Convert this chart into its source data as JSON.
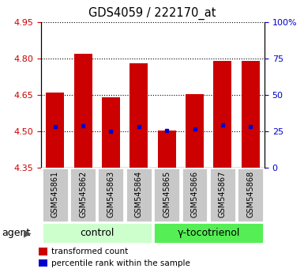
{
  "title": "GDS4059 / 222170_at",
  "samples": [
    "GSM545861",
    "GSM545862",
    "GSM545863",
    "GSM545864",
    "GSM545865",
    "GSM545866",
    "GSM545867",
    "GSM545868"
  ],
  "bar_tops": [
    4.66,
    4.82,
    4.64,
    4.78,
    4.505,
    4.655,
    4.79,
    4.79
  ],
  "bar_bottom": 4.35,
  "blue_values": [
    4.52,
    4.525,
    4.502,
    4.52,
    4.503,
    4.512,
    4.528,
    4.522
  ],
  "ylim_left": [
    4.35,
    4.95
  ],
  "ylim_right": [
    0,
    100
  ],
  "yticks_left": [
    4.35,
    4.5,
    4.65,
    4.8,
    4.95
  ],
  "yticks_right": [
    0,
    25,
    50,
    75,
    100
  ],
  "ytick_labels_right": [
    "0",
    "25",
    "50",
    "75",
    "100%"
  ],
  "bar_color": "#cc0000",
  "blue_color": "#0000cc",
  "groups": [
    {
      "label": "control",
      "indices": [
        0,
        1,
        2,
        3
      ],
      "color": "#ccffcc"
    },
    {
      "label": "γ-tocotrienol",
      "indices": [
        4,
        5,
        6,
        7
      ],
      "color": "#55ee55"
    }
  ],
  "agent_label": "agent",
  "legend_red": "transformed count",
  "legend_blue": "percentile rank within the sample",
  "tick_label_color_left": "#cc0000",
  "tick_label_color_right": "#0000cc",
  "bar_width": 0.65,
  "grid_color": "#000000",
  "bg_color": "#ffffff",
  "plot_bg": "#ffffff",
  "label_bg": "#c8c8c8",
  "label_border": "#ffffff"
}
